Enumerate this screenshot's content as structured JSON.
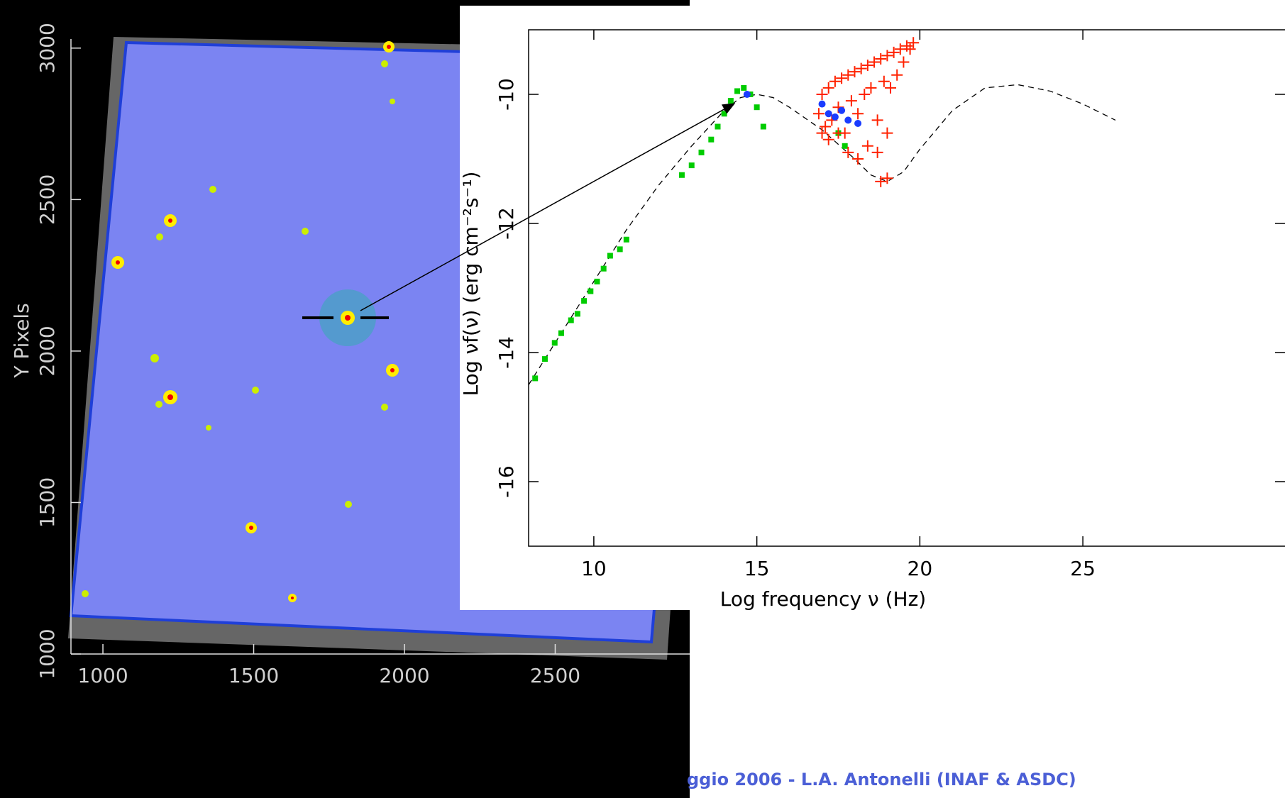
{
  "chart_data": [
    {
      "type": "image",
      "ylabel": "Y Pixels",
      "xlim": [
        894,
        2946
      ],
      "xticks": [
        1000,
        1500,
        2000,
        2500
      ],
      "ylim": [
        1000,
        3030
      ],
      "yticks": [
        1000,
        1500,
        2000,
        2500,
        3000
      ]
    },
    {
      "type": "scatter",
      "xlabel": "Log frequency ν (Hz)",
      "ylabel": "Log νf(ν) (erg cm⁻²s⁻¹)",
      "xlim": [
        8,
        31.2
      ],
      "xticks": [
        10,
        15,
        20,
        25
      ],
      "ylim": [
        -17,
        -9
      ],
      "yticks": [
        -16,
        -14,
        -12,
        -10
      ],
      "series": [
        {
          "marker": "line",
          "color": "#000000",
          "x": [
            8,
            9,
            10,
            11,
            12,
            13,
            14,
            14.5,
            15,
            15.5,
            16,
            17,
            18,
            18.5,
            19,
            19.5,
            20,
            21,
            22,
            23,
            24,
            25,
            26
          ],
          "values": [
            -14.5,
            -13.7,
            -12.9,
            -12.1,
            -11.4,
            -10.8,
            -10.25,
            -10.05,
            -10.0,
            -10.05,
            -10.2,
            -10.55,
            -11.0,
            -11.25,
            -11.35,
            -11.2,
            -10.85,
            -10.25,
            -9.9,
            -9.85,
            -9.95,
            -10.15,
            -10.4
          ]
        },
        {
          "marker": "square",
          "color": "#00cc00",
          "x": [
            8.2,
            8.5,
            8.8,
            9.0,
            9.3,
            9.5,
            9.7,
            9.9,
            10.1,
            10.3,
            10.5,
            10.8,
            11.0,
            12.7,
            13.0,
            13.3,
            13.6,
            13.8,
            14.0,
            14.2,
            14.4,
            14.6,
            14.8,
            15.0,
            15.2,
            17.5,
            17.7
          ],
          "values": [
            -14.4,
            -14.1,
            -13.85,
            -13.7,
            -13.5,
            -13.4,
            -13.2,
            -13.05,
            -12.9,
            -12.7,
            -12.5,
            -12.4,
            -12.25,
            -11.25,
            -11.1,
            -10.9,
            -10.7,
            -10.5,
            -10.3,
            -10.1,
            -9.95,
            -9.9,
            -10.0,
            -10.2,
            -10.5,
            -10.6,
            -10.8
          ]
        },
        {
          "marker": "cross",
          "color": "#ff2200",
          "x": [
            16.9,
            17.0,
            17.1,
            17.2,
            17.3,
            17.4,
            17.5,
            17.6,
            17.7,
            17.8,
            17.9,
            18.0,
            18.1,
            18.2,
            18.3,
            18.4,
            18.5,
            18.6,
            18.7,
            18.8,
            18.9,
            19.0,
            19.1,
            19.2,
            19.3,
            19.4,
            19.5,
            19.6,
            19.7,
            19.8,
            17.2,
            17.5,
            17.8,
            18.1,
            18.4,
            18.7,
            19.0,
            18.8,
            19.0,
            17.0
          ],
          "values": [
            -10.3,
            -10.0,
            -10.5,
            -9.9,
            -10.4,
            -9.8,
            -10.2,
            -9.75,
            -10.6,
            -9.7,
            -10.1,
            -9.65,
            -10.3,
            -9.6,
            -10.0,
            -9.55,
            -9.9,
            -9.5,
            -10.4,
            -9.45,
            -9.8,
            -9.4,
            -9.9,
            -9.35,
            -9.7,
            -9.3,
            -9.5,
            -9.25,
            -9.3,
            -9.2,
            -10.7,
            -10.6,
            -10.9,
            -11.0,
            -10.8,
            -10.9,
            -10.6,
            -11.35,
            -11.3,
            -10.6
          ]
        },
        {
          "marker": "circle",
          "color": "#1a3cff",
          "x": [
            14.7,
            17.0,
            17.2,
            17.4,
            17.6,
            17.8,
            18.1
          ],
          "values": [
            -10.0,
            -10.15,
            -10.3,
            -10.35,
            -10.25,
            -10.4,
            -10.45
          ]
        }
      ]
    }
  ],
  "footer": "ggio 2006 - L.A. Antonelli (INAF & ASDC)"
}
